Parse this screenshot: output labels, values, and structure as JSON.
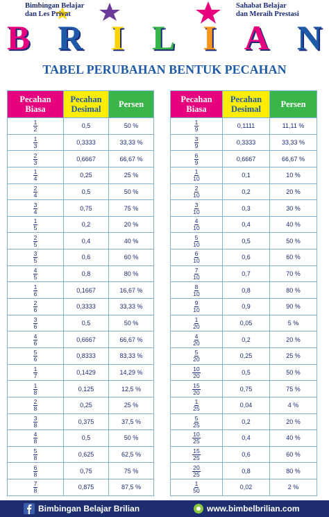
{
  "header": {
    "left_line1": "Bimbingan Belajar",
    "left_line2": "dan Les Privat",
    "right_line1": "Sahabat Belajar",
    "right_line2": "dan Meraih Prestasi",
    "logo_letters": [
      "B",
      "R",
      "I",
      "L",
      "I",
      "A",
      "N"
    ]
  },
  "title": "TABEL PERUBAHAN BENTUK PECAHAN",
  "tables": [
    {
      "columns": [
        "Pecahan Biasa",
        "Pecahan Desimal",
        "Persen"
      ],
      "rows": [
        [
          "1",
          "2",
          "0,5",
          "50 %"
        ],
        [
          "1",
          "3",
          "0,3333",
          "33,33 %"
        ],
        [
          "2",
          "3",
          "0,6667",
          "66,67 %"
        ],
        [
          "1",
          "4",
          "0,25",
          "25 %"
        ],
        [
          "2",
          "4",
          "0,5",
          "50 %"
        ],
        [
          "3",
          "4",
          "0,75",
          "75 %"
        ],
        [
          "1",
          "5",
          "0,2",
          "20 %"
        ],
        [
          "2",
          "5",
          "0,4",
          "40 %"
        ],
        [
          "3",
          "5",
          "0,6",
          "60 %"
        ],
        [
          "4",
          "5",
          "0,8",
          "80 %"
        ],
        [
          "1",
          "6",
          "0,1667",
          "16,67 %"
        ],
        [
          "2",
          "6",
          "0,3333",
          "33,33 %"
        ],
        [
          "3",
          "6",
          "0,5",
          "50 %"
        ],
        [
          "4",
          "6",
          "0,6667",
          "66,67 %"
        ],
        [
          "5",
          "6",
          "0,8333",
          "83,33 %"
        ],
        [
          "1",
          "7",
          "0,1429",
          "14,29 %"
        ],
        [
          "1",
          "8",
          "0,125",
          "12,5 %"
        ],
        [
          "2",
          "8",
          "0,25",
          "25 %"
        ],
        [
          "3",
          "8",
          "0,375",
          "37,5 %"
        ],
        [
          "4",
          "8",
          "0,5",
          "50 %"
        ],
        [
          "5",
          "8",
          "0,625",
          "62,5 %"
        ],
        [
          "6",
          "8",
          "0,75",
          "75 %"
        ],
        [
          "7",
          "8",
          "0,875",
          "87,5 %"
        ]
      ]
    },
    {
      "columns": [
        "Pecahan Biasa",
        "Pecahan Desimal",
        "Persen"
      ],
      "rows": [
        [
          "1",
          "9",
          "0,1111",
          "11,11 %"
        ],
        [
          "3",
          "9",
          "0,3333",
          "33,33 %"
        ],
        [
          "6",
          "9",
          "0,6667",
          "66,67 %"
        ],
        [
          "1",
          "10",
          "0,1",
          "10 %"
        ],
        [
          "2",
          "10",
          "0,2",
          "20 %"
        ],
        [
          "3",
          "10",
          "0,3",
          "30 %"
        ],
        [
          "4",
          "10",
          "0,4",
          "40 %"
        ],
        [
          "5",
          "10",
          "0,5",
          "50 %"
        ],
        [
          "6",
          "10",
          "0,6",
          "60 %"
        ],
        [
          "7",
          "10",
          "0,7",
          "70 %"
        ],
        [
          "8",
          "10",
          "0,8",
          "80 %"
        ],
        [
          "9",
          "10",
          "0,9",
          "90 %"
        ],
        [
          "1",
          "20",
          "0,05",
          "5 %"
        ],
        [
          "4",
          "20",
          "0,2",
          "20 %"
        ],
        [
          "5",
          "20",
          "0,25",
          "25 %"
        ],
        [
          "10",
          "20",
          "0,5",
          "50 %"
        ],
        [
          "15",
          "20",
          "0,75",
          "75 %"
        ],
        [
          "1",
          "25",
          "0,04",
          "4 %"
        ],
        [
          "5",
          "25",
          "0,2",
          "20 %"
        ],
        [
          "10",
          "25",
          "0,4",
          "40 %"
        ],
        [
          "15",
          "25",
          "0,6",
          "60 %"
        ],
        [
          "20",
          "25",
          "0,8",
          "80 %"
        ],
        [
          "1",
          "50",
          "0,02",
          "2 %"
        ]
      ]
    }
  ],
  "footer": {
    "left": "Bimbingan Belajar Brilian",
    "right": "www.bimbelbrilian.com"
  }
}
